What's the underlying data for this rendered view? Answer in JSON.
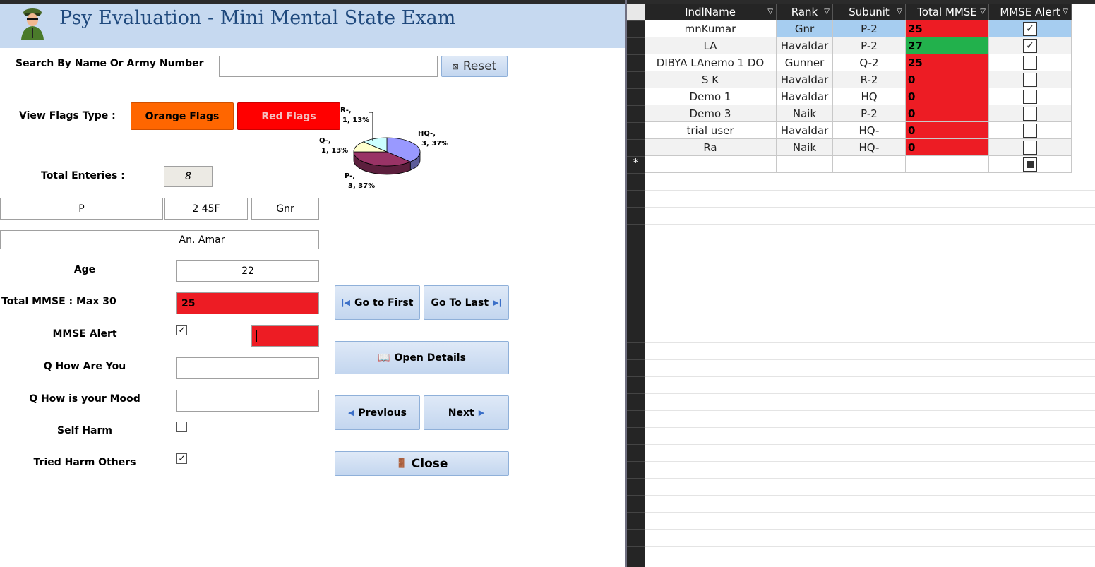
{
  "header": {
    "title": "Psy Evaluation - Mini Mental State Exam",
    "logo_icon": "soldier-icon"
  },
  "search": {
    "label": "Search By Name Or Army Number",
    "value": "",
    "reset_label": "Reset"
  },
  "flags": {
    "label": "View Flags Type :",
    "orange_label": "Orange Flags",
    "red_label": "Red Flags",
    "orange_color": "#ff6600",
    "red_color": "#ff0000"
  },
  "chart_data": {
    "type": "pie",
    "slices": [
      {
        "label": "HQ-",
        "value": 3,
        "percent": "37%",
        "color": "#9999ff",
        "text": "HQ-, 3, 37%"
      },
      {
        "label": "P-",
        "value": 3,
        "percent": "37%",
        "color": "#993366",
        "text": "P-, 3, 37%"
      },
      {
        "label": "Q-",
        "value": 1,
        "percent": "13%",
        "color": "#ffffcc",
        "text": "Q-, 1, 13%"
      },
      {
        "label": "R-",
        "value": 1,
        "percent": "13%",
        "color": "#ccffff",
        "text": "R-, 1, 13%"
      }
    ]
  },
  "totals": {
    "label": "Total Enteries :",
    "value": "8"
  },
  "record": {
    "name_field": "P",
    "army_no": "2 45F",
    "rank": "Gnr",
    "full_name": "An.   Amar",
    "age_label": "Age",
    "age": "22",
    "mmse_label": "Total MMSE : Max 30",
    "mmse": "25",
    "alert_label": "MMSE Alert",
    "alert_checked": true,
    "q_how_label": "Q How Are You",
    "q_how": "",
    "q_mood_label": "Q How is your Mood",
    "q_mood": "",
    "self_harm_label": "Self Harm",
    "self_harm": false,
    "tried_harm_label": "Tried Harm Others",
    "tried_harm": true
  },
  "nav": {
    "first": "Go to First",
    "last": "Go To Last",
    "open": "Open Details",
    "previous": "Previous",
    "next": "Next",
    "close": "Close"
  },
  "grid": {
    "columns": [
      "IndlName",
      "Rank",
      "Subunit",
      "Total MMSE",
      "MMSE Alert"
    ],
    "rows": [
      {
        "name": "mnKumar",
        "rank": "Gnr",
        "subunit": "P-2",
        "mmse": "25",
        "alert": true,
        "color": "#ed1c24"
      },
      {
        "name": "LA",
        "rank": "Havaldar",
        "subunit": "P-2",
        "mmse": "27",
        "alert": true,
        "color": "#22b14c"
      },
      {
        "name": "DIBYA LAnemo 1     DO",
        "rank": "Gunner",
        "subunit": "Q-2",
        "mmse": "25",
        "alert": false,
        "color": "#ed1c24"
      },
      {
        "name": "S          K",
        "rank": "Havaldar",
        "subunit": "R-2",
        "mmse": "0",
        "alert": false,
        "color": "#ed1c24"
      },
      {
        "name": "Demo 1",
        "rank": "Havaldar",
        "subunit": "HQ",
        "mmse": "0",
        "alert": false,
        "color": "#ed1c24"
      },
      {
        "name": "Demo 3",
        "rank": "Naik",
        "subunit": "P-2",
        "mmse": "0",
        "alert": false,
        "color": "#ed1c24"
      },
      {
        "name": "trial user",
        "rank": "Havaldar",
        "subunit": "HQ-",
        "mmse": "0",
        "alert": false,
        "color": "#ed1c24"
      },
      {
        "name": "Ra",
        "rank": "Naik",
        "subunit": "HQ-",
        "mmse": "0",
        "alert": false,
        "color": "#ed1c24"
      }
    ],
    "new_row_marker": "*"
  }
}
